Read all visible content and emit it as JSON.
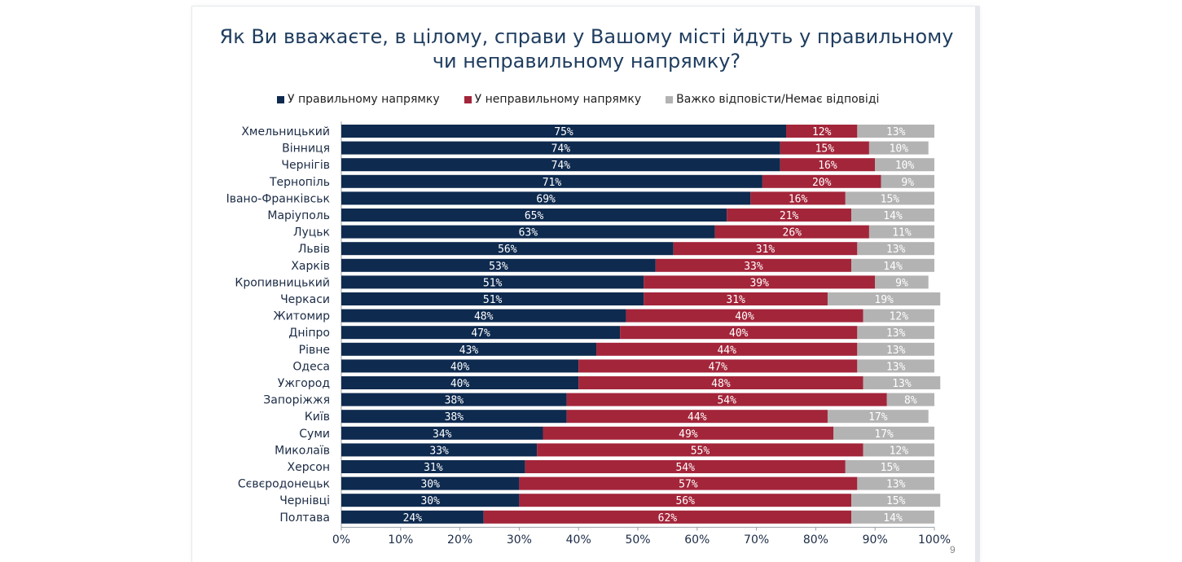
{
  "chart_data": {
    "type": "bar",
    "orientation": "horizontal",
    "stacked": true,
    "title": "Як Ви вважаєте, в цілому, справи у Вашому місті йдуть у правильному чи неправильному напрямку?",
    "title_lines": [
      "Як Ви вважаєте, в цілому, справи у Вашому місті йдуть у правильному",
      "чи неправильному напрямку?"
    ],
    "categories": [
      "Хмельницький",
      "Вінниця",
      "Чернігів",
      "Тернопіль",
      "Івано-Франківськ",
      "Маріуполь",
      "Луцьк",
      "Львів",
      "Харків",
      "Кропивницький",
      "Черкаси",
      "Житомир",
      "Дніпро",
      "Рівне",
      "Одеса",
      "Ужгород",
      "Запоріжжя",
      "Київ",
      "Суми",
      "Миколаїв",
      "Херсон",
      "Сєвєродонецьк",
      "Чернівці",
      "Полтава"
    ],
    "series": [
      {
        "name": "У правильному напрямку",
        "color": "#0e2a4f",
        "values": [
          75,
          74,
          74,
          71,
          69,
          65,
          63,
          56,
          53,
          51,
          51,
          48,
          47,
          43,
          40,
          40,
          38,
          38,
          34,
          33,
          31,
          30,
          30,
          24
        ]
      },
      {
        "name": "У неправильному напрямку",
        "color": "#a3253a",
        "values": [
          12,
          15,
          16,
          20,
          16,
          21,
          26,
          31,
          33,
          39,
          31,
          40,
          40,
          44,
          47,
          48,
          54,
          44,
          49,
          55,
          54,
          57,
          56,
          62
        ]
      },
      {
        "name": "Важко відповісти/Немає відповіді",
        "color": "#b3b3b3",
        "values": [
          13,
          10,
          10,
          9,
          15,
          14,
          11,
          13,
          14,
          9,
          19,
          12,
          13,
          13,
          13,
          13,
          8,
          17,
          17,
          12,
          15,
          13,
          15,
          14
        ]
      }
    ],
    "xlim": [
      0,
      100
    ],
    "x_ticks": [
      "0%",
      "10%",
      "20%",
      "30%",
      "40%",
      "50%",
      "60%",
      "70%",
      "80%",
      "90%",
      "100%"
    ],
    "legend_position": "top"
  },
  "page_number": "9"
}
